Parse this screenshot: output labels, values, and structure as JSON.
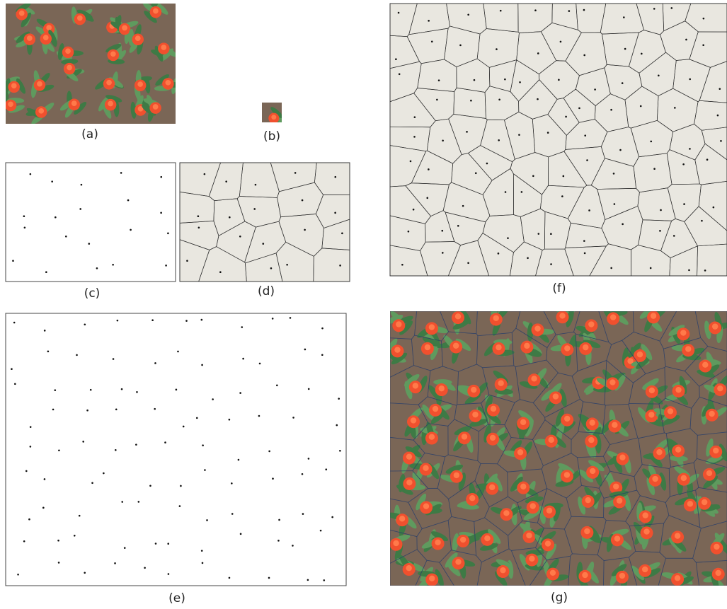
{
  "figure": {
    "captions": {
      "a": "(a)",
      "b": "(b)",
      "c": "(c)",
      "d": "(d)",
      "e": "(e)",
      "f": "(f)",
      "g": "(g)"
    }
  }
}
